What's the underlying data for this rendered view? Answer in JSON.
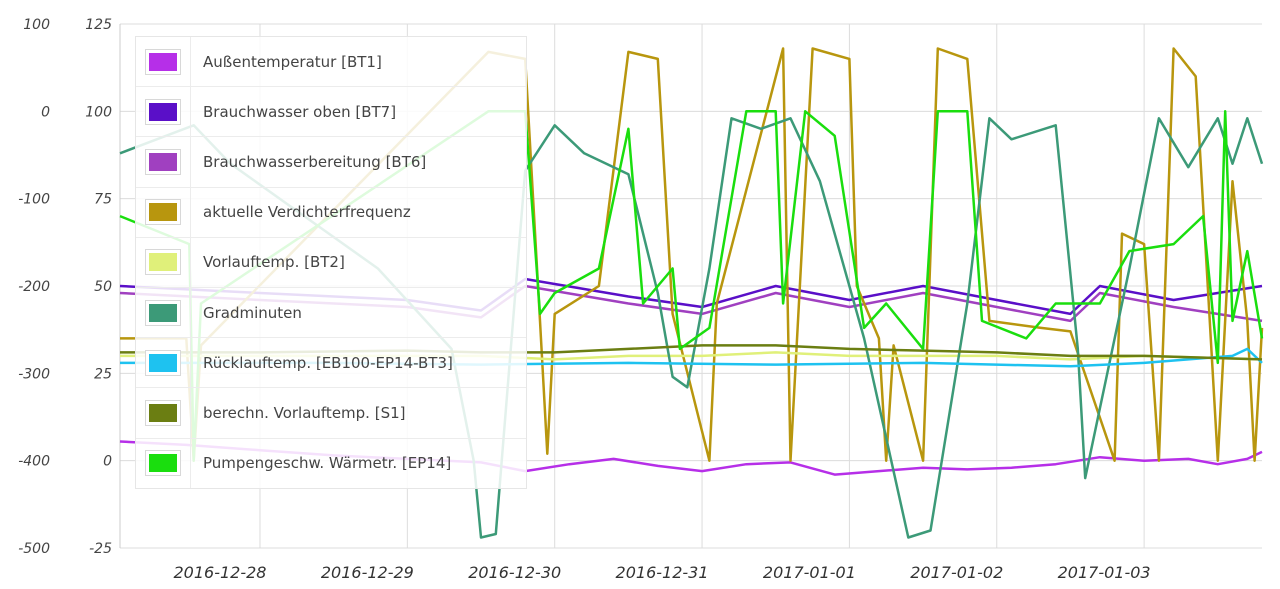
{
  "chart_data": {
    "type": "line",
    "axes": {
      "left": {
        "ticks": [
          100,
          0,
          -100,
          -200,
          -300,
          -400,
          -500
        ],
        "range": [
          -500,
          100
        ]
      },
      "right": {
        "ticks": [
          125,
          100,
          75,
          50,
          25,
          0,
          -25
        ],
        "range": [
          -25,
          125
        ]
      }
    },
    "x_ticks": [
      "2016-12-28",
      "2016-12-29",
      "2016-12-30",
      "2016-12-31",
      "2017-01-01",
      "2017-01-02",
      "2017-01-03"
    ],
    "x_range_days": [
      -0.45,
      7.3
    ],
    "grid": true,
    "legend_position": "top-left",
    "series": [
      {
        "name": "Außentemperatur [BT1]",
        "color": "#b62fe8",
        "axis": "right",
        "points": [
          [
            -0.45,
            5.5
          ],
          [
            0,
            4.5
          ],
          [
            0.5,
            3
          ],
          [
            1,
            1.5
          ],
          [
            1.5,
            0.5
          ],
          [
            2,
            -0.5
          ],
          [
            2.3,
            -3
          ],
          [
            2.6,
            -1
          ],
          [
            2.9,
            0.5
          ],
          [
            3.2,
            -1.5
          ],
          [
            3.5,
            -3
          ],
          [
            3.8,
            -1
          ],
          [
            4.1,
            -0.5
          ],
          [
            4.4,
            -4
          ],
          [
            4.7,
            -3
          ],
          [
            5,
            -2
          ],
          [
            5.3,
            -2.5
          ],
          [
            5.6,
            -2
          ],
          [
            5.9,
            -1
          ],
          [
            6.2,
            1
          ],
          [
            6.5,
            0
          ],
          [
            6.8,
            0.5
          ],
          [
            7,
            -1
          ],
          [
            7.2,
            0.5
          ],
          [
            7.3,
            2.5
          ]
        ]
      },
      {
        "name": "Brauchwasser oben [BT7]",
        "color": "#5a0fc8",
        "axis": "right",
        "points": [
          [
            -0.45,
            50
          ],
          [
            0.5,
            48
          ],
          [
            1.5,
            46
          ],
          [
            2,
            43
          ],
          [
            2.3,
            52
          ],
          [
            3,
            47
          ],
          [
            3.5,
            44
          ],
          [
            4,
            50
          ],
          [
            4.5,
            46
          ],
          [
            5,
            50
          ],
          [
            5.5,
            46
          ],
          [
            6,
            42
          ],
          [
            6.2,
            50
          ],
          [
            6.7,
            46
          ],
          [
            7.3,
            50
          ]
        ]
      },
      {
        "name": "Brauchwasserbereitung [BT6]",
        "color": "#a040c0",
        "axis": "right",
        "points": [
          [
            -0.45,
            48
          ],
          [
            0.5,
            46
          ],
          [
            1.5,
            44
          ],
          [
            2,
            41
          ],
          [
            2.3,
            50
          ],
          [
            3,
            45
          ],
          [
            3.5,
            42
          ],
          [
            4,
            48
          ],
          [
            4.5,
            44
          ],
          [
            5,
            48
          ],
          [
            5.5,
            44
          ],
          [
            6,
            40
          ],
          [
            6.2,
            48
          ],
          [
            6.7,
            44
          ],
          [
            7.3,
            40
          ]
        ]
      },
      {
        "name": "aktuelle Verdichterfrequenz",
        "color": "#b8960e",
        "axis": "right",
        "points": [
          [
            -0.45,
            35
          ],
          [
            0,
            35
          ],
          [
            0.05,
            0
          ],
          [
            0.1,
            33
          ],
          [
            2.05,
            117
          ],
          [
            2.3,
            115
          ],
          [
            2.4,
            40
          ],
          [
            2.45,
            2
          ],
          [
            2.5,
            42
          ],
          [
            2.8,
            50
          ],
          [
            3,
            117
          ],
          [
            3.2,
            115
          ],
          [
            3.3,
            42
          ],
          [
            3.55,
            0
          ],
          [
            3.6,
            45
          ],
          [
            4.05,
            118
          ],
          [
            4.1,
            0
          ],
          [
            4.25,
            118
          ],
          [
            4.5,
            115
          ],
          [
            4.55,
            50
          ],
          [
            4.7,
            35
          ],
          [
            4.75,
            0
          ],
          [
            4.8,
            33
          ],
          [
            5,
            0
          ],
          [
            5.1,
            118
          ],
          [
            5.3,
            115
          ],
          [
            5.45,
            40
          ],
          [
            5.8,
            38
          ],
          [
            6,
            37
          ],
          [
            6.3,
            0
          ],
          [
            6.35,
            65
          ],
          [
            6.5,
            62
          ],
          [
            6.6,
            0
          ],
          [
            6.7,
            118
          ],
          [
            6.85,
            110
          ],
          [
            7,
            0
          ],
          [
            7.1,
            80
          ],
          [
            7.2,
            40
          ],
          [
            7.25,
            0
          ],
          [
            7.3,
            38
          ]
        ]
      },
      {
        "name": "Vorlauftemp. [BT2]",
        "color": "#e0f07a",
        "axis": "right",
        "points": [
          [
            -0.45,
            30
          ],
          [
            0.5,
            30
          ],
          [
            1.5,
            30
          ],
          [
            2,
            30
          ],
          [
            2.5,
            29
          ],
          [
            3,
            30
          ],
          [
            3.5,
            30
          ],
          [
            4,
            31
          ],
          [
            4.5,
            30
          ],
          [
            5,
            30
          ],
          [
            5.5,
            30
          ],
          [
            6,
            29
          ],
          [
            6.5,
            30
          ],
          [
            7.3,
            29
          ]
        ]
      },
      {
        "name": "Gradminuten",
        "color": "#3c9a78",
        "axis": "right",
        "points": [
          [
            -0.45,
            88
          ],
          [
            0.05,
            96
          ],
          [
            0.3,
            85
          ],
          [
            0.8,
            70
          ],
          [
            1.3,
            55
          ],
          [
            1.8,
            32
          ],
          [
            1.95,
            0
          ],
          [
            2,
            -22
          ],
          [
            2.1,
            -21
          ],
          [
            2.3,
            83
          ],
          [
            2.5,
            96
          ],
          [
            2.7,
            88
          ],
          [
            3,
            82
          ],
          [
            3.2,
            48
          ],
          [
            3.3,
            24
          ],
          [
            3.4,
            21
          ],
          [
            3.55,
            55
          ],
          [
            3.7,
            98
          ],
          [
            3.9,
            95
          ],
          [
            4.1,
            98
          ],
          [
            4.3,
            80
          ],
          [
            4.6,
            35
          ],
          [
            4.9,
            -22
          ],
          [
            5.05,
            -20
          ],
          [
            5.3,
            45
          ],
          [
            5.45,
            98
          ],
          [
            5.6,
            92
          ],
          [
            5.9,
            96
          ],
          [
            6.05,
            32
          ],
          [
            6.1,
            -5
          ],
          [
            6.2,
            15
          ],
          [
            6.4,
            55
          ],
          [
            6.6,
            98
          ],
          [
            6.8,
            84
          ],
          [
            7,
            98
          ],
          [
            7.1,
            85
          ],
          [
            7.2,
            98
          ],
          [
            7.3,
            85
          ]
        ]
      },
      {
        "name": "Rücklauftemp. [EB100-EP14-BT3]",
        "color": "#1ec2f0",
        "axis": "right",
        "points": [
          [
            -0.45,
            28
          ],
          [
            1,
            28
          ],
          [
            2,
            27.5
          ],
          [
            3,
            28
          ],
          [
            4,
            27.5
          ],
          [
            5,
            28
          ],
          [
            6,
            27
          ],
          [
            6.5,
            28
          ],
          [
            7.1,
            30
          ],
          [
            7.2,
            32
          ],
          [
            7.3,
            28
          ]
        ]
      },
      {
        "name": "berechn. Vorlauftemp. [S1]",
        "color": "#6b7e12",
        "axis": "right",
        "points": [
          [
            -0.45,
            31
          ],
          [
            0.5,
            31
          ],
          [
            1.5,
            31.5
          ],
          [
            2,
            31
          ],
          [
            2.5,
            31
          ],
          [
            3,
            32
          ],
          [
            3.5,
            33
          ],
          [
            4,
            33
          ],
          [
            4.5,
            32
          ],
          [
            5,
            31.5
          ],
          [
            5.5,
            31
          ],
          [
            6,
            30
          ],
          [
            6.5,
            30
          ],
          [
            7.3,
            29
          ]
        ]
      },
      {
        "name": "Pumpengeschw. Wärmetr. [EP14]",
        "color": "#1ade0e",
        "axis": "right",
        "points": [
          [
            -0.45,
            70
          ],
          [
            0.02,
            62
          ],
          [
            0.05,
            0
          ],
          [
            0.1,
            45
          ],
          [
            2.05,
            100
          ],
          [
            2.3,
            100
          ],
          [
            2.4,
            42
          ],
          [
            2.5,
            48
          ],
          [
            2.8,
            55
          ],
          [
            3,
            95
          ],
          [
            3.1,
            45
          ],
          [
            3.3,
            55
          ],
          [
            3.35,
            32
          ],
          [
            3.55,
            38
          ],
          [
            3.8,
            100
          ],
          [
            4.0,
            100
          ],
          [
            4.05,
            45
          ],
          [
            4.2,
            100
          ],
          [
            4.4,
            93
          ],
          [
            4.6,
            38
          ],
          [
            4.75,
            45
          ],
          [
            5.0,
            32
          ],
          [
            5.1,
            100
          ],
          [
            5.3,
            100
          ],
          [
            5.4,
            40
          ],
          [
            5.7,
            35
          ],
          [
            5.9,
            45
          ],
          [
            6.2,
            45
          ],
          [
            6.4,
            60
          ],
          [
            6.7,
            62
          ],
          [
            6.9,
            70
          ],
          [
            7.0,
            28
          ],
          [
            7.05,
            100
          ],
          [
            7.1,
            40
          ],
          [
            7.2,
            60
          ],
          [
            7.3,
            35
          ]
        ]
      }
    ]
  }
}
